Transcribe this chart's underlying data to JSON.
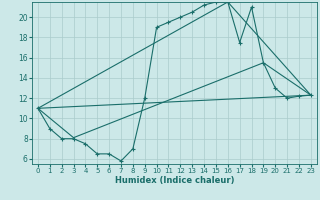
{
  "xlabel": "Humidex (Indice chaleur)",
  "bg_color": "#cce8e8",
  "grid_color": "#aacccc",
  "line_color": "#1a6e6a",
  "xlim": [
    -0.5,
    23.5
  ],
  "ylim": [
    5.5,
    21.5
  ],
  "yticks": [
    6,
    8,
    10,
    12,
    14,
    16,
    18,
    20
  ],
  "xticks": [
    0,
    1,
    2,
    3,
    4,
    5,
    6,
    7,
    8,
    9,
    10,
    11,
    12,
    13,
    14,
    15,
    16,
    17,
    18,
    19,
    20,
    21,
    22,
    23
  ],
  "line1_x": [
    0,
    1,
    2,
    3,
    4,
    5,
    6,
    7,
    8,
    9,
    10,
    11,
    12,
    13,
    14,
    15,
    16,
    17,
    18,
    19,
    20,
    21,
    22,
    23
  ],
  "line1_y": [
    11,
    9,
    8,
    8,
    7.5,
    6.5,
    6.5,
    5.8,
    7,
    12,
    19,
    19.5,
    20,
    20.5,
    21.2,
    21.5,
    21.5,
    17.5,
    21,
    15.5,
    13,
    12,
    12.2,
    12.3
  ],
  "line2_x": [
    0,
    23
  ],
  "line2_y": [
    11,
    12.3
  ],
  "line3_x": [
    0,
    3,
    19,
    23
  ],
  "line3_y": [
    11,
    8.1,
    15.5,
    12.3
  ],
  "line4_x": [
    0,
    16,
    23
  ],
  "line4_y": [
    11,
    21.5,
    12.3
  ]
}
